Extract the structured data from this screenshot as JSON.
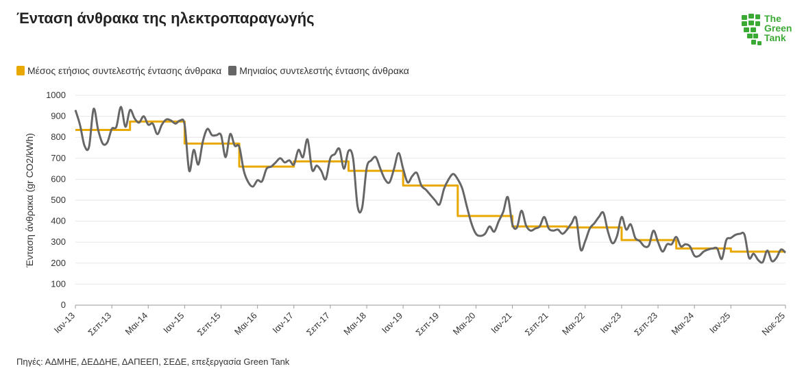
{
  "header": {
    "title": "Ένταση άνθρακα της ηλεκτροπαραγωγής"
  },
  "logo": {
    "line1": "The",
    "line2": "Green",
    "line3": "Tank",
    "color": "#3aaa35"
  },
  "footer": {
    "source": "Πηγές: ΑΔΜΗΕ, ΔΕΔΔΗΕ, ΔΑΠΕΕΠ, ΣΕΔΕ, επεξεργασία Green Tank"
  },
  "chart_data": {
    "type": "line",
    "title": "Ένταση άνθρακα της ηλεκτροπαραγωγής",
    "xlabel": "",
    "ylabel": "Ένταση άνθρακα (gr CO2/kWh)",
    "ylim": [
      0,
      1000
    ],
    "yticks": [
      0,
      100,
      200,
      300,
      400,
      500,
      600,
      700,
      800,
      900,
      1000
    ],
    "xticks": [
      "Ιαν-13",
      "Σεπ-13",
      "Μαι-14",
      "Ιαν-15",
      "Σεπ-15",
      "Μαι-16",
      "Ιαν-17",
      "Σεπ-17",
      "Μαι-18",
      "Ιαν-19",
      "Σεπ-19",
      "Μαι-20",
      "Ιαν-21",
      "Σεπ-21",
      "Μαι-22",
      "Ιαν-23",
      "Σεπ-23",
      "Μαι-24",
      "Ιαν-25",
      "Νοε-25"
    ],
    "legend_position": "top-left",
    "start_month": "2013-01",
    "series": [
      {
        "name": "Μέσος ετήσιος συντελεστής έντασης άνθρακα",
        "color": "#e8a800",
        "step": true,
        "annual_values": [
          835,
          875,
          770,
          660,
          685,
          640,
          570,
          425,
          375,
          370,
          310,
          270,
          255
        ]
      },
      {
        "name": "Μηνιαίος συντελεστής έντασης άνθρακα",
        "color": "#666666",
        "values": [
          930,
          860,
          760,
          755,
          935,
          835,
          770,
          775,
          840,
          850,
          945,
          850,
          930,
          890,
          870,
          900,
          860,
          865,
          815,
          860,
          885,
          880,
          865,
          880,
          860,
          640,
          740,
          670,
          780,
          840,
          810,
          810,
          810,
          705,
          815,
          760,
          755,
          640,
          585,
          565,
          595,
          590,
          650,
          660,
          680,
          700,
          680,
          690,
          670,
          740,
          705,
          790,
          645,
          665,
          640,
          600,
          700,
          720,
          745,
          650,
          735,
          700,
          470,
          465,
          655,
          690,
          705,
          650,
          600,
          585,
          650,
          725,
          650,
          585,
          615,
          630,
          570,
          550,
          525,
          500,
          480,
          555,
          600,
          625,
          600,
          555,
          470,
          390,
          340,
          330,
          340,
          375,
          350,
          400,
          445,
          515,
          385,
          370,
          450,
          380,
          355,
          365,
          375,
          420,
          365,
          355,
          360,
          340,
          360,
          390,
          415,
          265,
          305,
          365,
          390,
          420,
          440,
          350,
          295,
          330,
          420,
          360,
          385,
          320,
          305,
          280,
          285,
          355,
          300,
          255,
          290,
          290,
          325,
          280,
          290,
          280,
          235,
          235,
          255,
          265,
          270,
          270,
          220,
          310,
          320,
          335,
          340,
          335,
          225,
          245,
          215,
          205,
          260,
          210,
          225,
          265,
          250
        ]
      }
    ]
  }
}
